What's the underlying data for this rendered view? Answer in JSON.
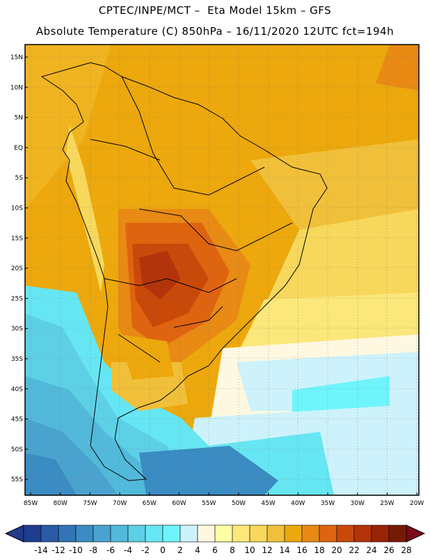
{
  "header": {
    "line1": "CPTEC/INPE/MCT –  Eta Model 15km – GFS",
    "line2": "Absolute Temperature (C) 850hPa – 16/11/2020 12UTC fct=194h"
  },
  "map": {
    "lat_labels": [
      "15N",
      "10N",
      "5N",
      "EQ",
      "5S",
      "10S",
      "15S",
      "20S",
      "25S",
      "30S",
      "35S",
      "40S",
      "45S",
      "50S",
      "55S"
    ],
    "lon_labels": [
      "85W",
      "80W",
      "75W",
      "70W",
      "65W",
      "60W",
      "55W",
      "50W",
      "45W",
      "40W",
      "35W",
      "30W",
      "25W",
      "20W"
    ]
  },
  "colorbar": {
    "labels": [
      "-14",
      "-12",
      "-10",
      "-8",
      "-6",
      "-4",
      "-2",
      "0",
      "2",
      "4",
      "6",
      "8",
      "10",
      "12",
      "14",
      "16",
      "18",
      "20",
      "22",
      "24",
      "26",
      "28"
    ],
    "colors": [
      "#1e3d8f",
      "#2a5aa6",
      "#3273b4",
      "#3a8cc2",
      "#4aa3cf",
      "#52b9da",
      "#5dd0e6",
      "#66e6f2",
      "#6ef5fb",
      "#cdf2fb",
      "#fff8e1",
      "#ffffa6",
      "#fbe77a",
      "#f7d85c",
      "#f0c03a",
      "#eca80c",
      "#e88a14",
      "#df6410",
      "#c9490a",
      "#b3330a",
      "#9a2408",
      "#751a07"
    ],
    "under_color": "#223a8a",
    "over_color": "#7a0a1a"
  }
}
